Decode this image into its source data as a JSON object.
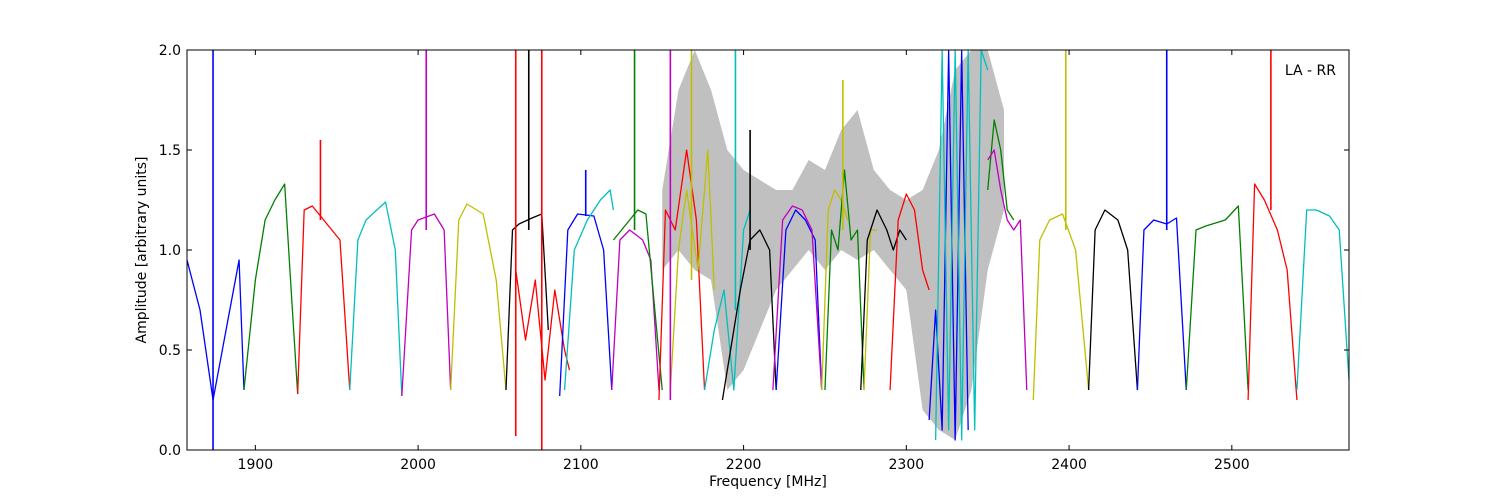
{
  "chart_data": {
    "type": "line",
    "title": "",
    "xlabel": "Frequency [MHz]",
    "ylabel": "Amplitude [arbitrary units]",
    "xlim": [
      1858,
      2572
    ],
    "ylim": [
      0.0,
      2.0
    ],
    "xticks": [
      1900,
      2000,
      2100,
      2200,
      2300,
      2400,
      2500
    ],
    "xtick_labels": [
      "1900",
      "2000",
      "2100",
      "2200",
      "2300",
      "2400",
      "2500"
    ],
    "yticks": [
      0.0,
      0.5,
      1.0,
      1.5,
      2.0
    ],
    "ytick_labels": [
      "0.0",
      "0.5",
      "1.0",
      "1.5",
      "2.0"
    ],
    "grid": false,
    "annotation": "LA - RR",
    "background_envelope": {
      "color": "#c0c0c0",
      "x": [
        2150,
        2160,
        2170,
        2180,
        2190,
        2200,
        2210,
        2220,
        2230,
        2240,
        2250,
        2260,
        2270,
        2280,
        2290,
        2300,
        2310,
        2320,
        2330,
        2340,
        2350,
        2360
      ],
      "upper": [
        1.3,
        1.8,
        2.0,
        1.8,
        1.5,
        1.4,
        1.35,
        1.3,
        1.3,
        1.45,
        1.4,
        1.6,
        1.7,
        1.4,
        1.3,
        1.25,
        1.3,
        1.5,
        1.9,
        2.0,
        2.0,
        1.7
      ],
      "lower": [
        0.9,
        1.0,
        0.9,
        0.85,
        0.3,
        0.4,
        0.6,
        0.8,
        0.9,
        1.0,
        0.9,
        1.0,
        0.95,
        1.0,
        0.9,
        0.8,
        0.2,
        0.1,
        0.05,
        0.3,
        0.9,
        1.2
      ]
    },
    "series": [
      {
        "color": "#0000ff",
        "x": [
          1858,
          1866,
          1874,
          1882,
          1890,
          1893
        ],
        "y": [
          0.95,
          0.7,
          0.25,
          0.6,
          0.95,
          0.3
        ]
      },
      {
        "color": "#008000",
        "x": [
          1893,
          1900,
          1906,
          1912,
          1918,
          1922,
          1926
        ],
        "y": [
          0.3,
          0.85,
          1.15,
          1.25,
          1.33,
          0.8,
          0.28
        ]
      },
      {
        "color": "#ff0000",
        "x": [
          1926,
          1930,
          1935,
          1945,
          1952,
          1958
        ],
        "y": [
          0.28,
          1.2,
          1.22,
          1.12,
          1.05,
          0.3
        ]
      },
      {
        "color": "#00bfbf",
        "x": [
          1958,
          1963,
          1968,
          1980,
          1986,
          1990
        ],
        "y": [
          0.3,
          1.05,
          1.15,
          1.24,
          1.0,
          0.27
        ]
      },
      {
        "color": "#bf00bf",
        "x": [
          1990,
          1996,
          2000,
          2010,
          2016,
          2020
        ],
        "y": [
          0.27,
          1.1,
          1.15,
          1.18,
          1.1,
          0.3
        ]
      },
      {
        "color": "#bfbf00",
        "x": [
          2020,
          2025,
          2030,
          2040,
          2048,
          2054
        ],
        "y": [
          0.3,
          1.15,
          1.23,
          1.18,
          0.85,
          0.3
        ]
      },
      {
        "color": "#000000",
        "x": [
          2054,
          2058,
          2062,
          2070,
          2076,
          2080
        ],
        "y": [
          0.3,
          1.1,
          1.13,
          1.16,
          1.18,
          0.6
        ]
      },
      {
        "color": "#ff0000",
        "x": [
          2060,
          2066,
          2072,
          2078,
          2084,
          2090,
          2093
        ],
        "y": [
          0.9,
          0.55,
          0.85,
          0.35,
          0.8,
          0.5,
          0.4
        ]
      },
      {
        "color": "#0000ff",
        "x": [
          2087,
          2092,
          2098,
          2108,
          2114,
          2119
        ],
        "y": [
          0.27,
          1.1,
          1.18,
          1.17,
          1.0,
          0.3
        ]
      },
      {
        "color": "#00bfbf",
        "x": [
          2090,
          2096,
          2104,
          2112,
          2118,
          2120
        ],
        "y": [
          0.3,
          1.0,
          1.15,
          1.25,
          1.3,
          1.2
        ]
      },
      {
        "color": "#bf00bf",
        "x": [
          2119,
          2124,
          2130,
          2138,
          2143,
          2148
        ],
        "y": [
          0.3,
          1.05,
          1.1,
          1.05,
          0.95,
          0.3
        ]
      },
      {
        "color": "#008000",
        "x": [
          2120,
          2125,
          2130,
          2135,
          2140,
          2150
        ],
        "y": [
          1.05,
          1.1,
          1.15,
          1.2,
          1.18,
          0.3
        ]
      },
      {
        "color": "#ff0000",
        "x": [
          2148,
          2152,
          2158,
          2165,
          2171,
          2176
        ],
        "y": [
          0.25,
          1.2,
          1.1,
          1.5,
          1.15,
          0.3
        ]
      },
      {
        "color": "#bfbf00",
        "x": [
          2155,
          2160,
          2165,
          2172,
          2178,
          2182
        ],
        "y": [
          0.3,
          1.0,
          1.3,
          0.9,
          1.5,
          0.8
        ]
      },
      {
        "color": "#00bfbf",
        "x": [
          2176,
          2182,
          2188,
          2194,
          2200,
          2204
        ],
        "y": [
          0.3,
          0.6,
          0.8,
          0.3,
          1.1,
          1.2
        ]
      },
      {
        "color": "#000000",
        "x": [
          2187,
          2192,
          2198,
          2204,
          2210,
          2216,
          2220
        ],
        "y": [
          0.25,
          0.5,
          0.8,
          1.05,
          1.1,
          1.0,
          0.3
        ]
      },
      {
        "color": "#0000ff",
        "x": [
          2220,
          2226,
          2232,
          2238,
          2244,
          2248
        ],
        "y": [
          0.3,
          1.1,
          1.2,
          1.15,
          1.05,
          0.3
        ]
      },
      {
        "color": "#bf00bf",
        "x": [
          2218,
          2224,
          2230,
          2236,
          2242,
          2248
        ],
        "y": [
          0.3,
          1.15,
          1.22,
          1.2,
          1.1,
          0.3
        ]
      },
      {
        "color": "#bfbf00",
        "x": [
          2248,
          2252,
          2256,
          2260,
          2264
        ],
        "y": [
          0.3,
          1.2,
          1.3,
          1.25,
          1.15
        ]
      },
      {
        "color": "#008000",
        "x": [
          2250,
          2254,
          2258,
          2262,
          2266,
          2270,
          2274
        ],
        "y": [
          0.3,
          1.1,
          1.0,
          1.4,
          1.05,
          1.1,
          0.3
        ]
      },
      {
        "color": "#bfbf00",
        "x": [
          2274,
          2278,
          2282
        ],
        "y": [
          0.3,
          1.1,
          1.1
        ]
      },
      {
        "color": "#000000",
        "x": [
          2272,
          2276,
          2282,
          2288,
          2292,
          2296,
          2300
        ],
        "y": [
          0.3,
          1.05,
          1.2,
          1.1,
          1.0,
          1.1,
          1.05
        ]
      },
      {
        "color": "#ff0000",
        "x": [
          2290,
          2295,
          2300,
          2305,
          2310,
          2314
        ],
        "y": [
          0.3,
          1.15,
          1.28,
          1.2,
          0.9,
          0.8
        ]
      },
      {
        "color": "#0000ff",
        "x": [
          2314,
          2318,
          2322,
          2326,
          2330,
          2334,
          2338
        ],
        "y": [
          0.15,
          0.7,
          0.1,
          2.0,
          0.05,
          2.0,
          0.1
        ]
      },
      {
        "color": "#00bfbf",
        "x": [
          2318,
          2322,
          2326,
          2330,
          2334,
          2338,
          2342,
          2346,
          2350
        ],
        "y": [
          0.05,
          2.0,
          0.1,
          2.0,
          0.05,
          2.0,
          0.1,
          2.0,
          1.9
        ]
      },
      {
        "color": "#008000",
        "x": [
          2350,
          2354,
          2358,
          2362,
          2366
        ],
        "y": [
          1.3,
          1.65,
          1.5,
          1.2,
          1.15
        ]
      },
      {
        "color": "#bf00bf",
        "x": [
          2350,
          2354,
          2358,
          2362,
          2366,
          2370,
          2374
        ],
        "y": [
          1.45,
          1.5,
          1.3,
          1.15,
          1.1,
          1.15,
          0.3
        ]
      },
      {
        "color": "#bfbf00",
        "x": [
          2378,
          2382,
          2388,
          2396,
          2404,
          2412
        ],
        "y": [
          0.25,
          1.05,
          1.15,
          1.18,
          1.0,
          0.3
        ]
      },
      {
        "color": "#000000",
        "x": [
          2412,
          2416,
          2422,
          2430,
          2436,
          2442
        ],
        "y": [
          0.3,
          1.1,
          1.2,
          1.15,
          1.0,
          0.3
        ]
      },
      {
        "color": "#0000ff",
        "x": [
          2442,
          2446,
          2452,
          2460,
          2466,
          2472
        ],
        "y": [
          0.3,
          1.1,
          1.15,
          1.13,
          1.16,
          0.3
        ]
      },
      {
        "color": "#008000",
        "x": [
          2472,
          2478,
          2484,
          2496,
          2504,
          2510
        ],
        "y": [
          0.3,
          1.1,
          1.12,
          1.15,
          1.22,
          0.3
        ]
      },
      {
        "color": "#ff0000",
        "x": [
          2510,
          2514,
          2520,
          2528,
          2534,
          2540
        ],
        "y": [
          0.25,
          1.33,
          1.25,
          1.1,
          0.9,
          0.25
        ]
      },
      {
        "color": "#00bfbf",
        "x": [
          2540,
          2546,
          2552,
          2560,
          2566,
          2572
        ],
        "y": [
          0.3,
          1.2,
          1.2,
          1.17,
          1.1,
          0.35
        ]
      }
    ],
    "spikes": [
      {
        "color": "#0000ff",
        "x": 1874,
        "y0": 0.0,
        "y1": 2.0
      },
      {
        "color": "#ff0000",
        "x": 1940,
        "y0": 1.15,
        "y1": 1.55
      },
      {
        "color": "#bf00bf",
        "x": 2005,
        "y0": 1.1,
        "y1": 2.0
      },
      {
        "color": "#ff0000",
        "x": 2060,
        "y0": 0.07,
        "y1": 2.0
      },
      {
        "color": "#000000",
        "x": 2068,
        "y0": 1.1,
        "y1": 2.0
      },
      {
        "color": "#ff0000",
        "x": 2076,
        "y0": 0.0,
        "y1": 2.0
      },
      {
        "color": "#0000ff",
        "x": 2103,
        "y0": 1.17,
        "y1": 1.4
      },
      {
        "color": "#008000",
        "x": 2133,
        "y0": 1.1,
        "y1": 2.0
      },
      {
        "color": "#bf00bf",
        "x": 2155,
        "y0": 0.25,
        "y1": 2.0
      },
      {
        "color": "#bfbf00",
        "x": 2168,
        "y0": 0.85,
        "y1": 2.0
      },
      {
        "color": "#00bfbf",
        "x": 2195,
        "y0": 0.7,
        "y1": 2.0
      },
      {
        "color": "#000000",
        "x": 2204,
        "y0": 1.0,
        "y1": 1.6
      },
      {
        "color": "#bfbf00",
        "x": 2261,
        "y0": 1.1,
        "y1": 1.85
      },
      {
        "color": "#bfbf00",
        "x": 2398,
        "y0": 1.1,
        "y1": 2.0
      },
      {
        "color": "#0000ff",
        "x": 2460,
        "y0": 1.1,
        "y1": 2.0
      },
      {
        "color": "#ff0000",
        "x": 2524,
        "y0": 1.2,
        "y1": 2.0
      }
    ]
  }
}
